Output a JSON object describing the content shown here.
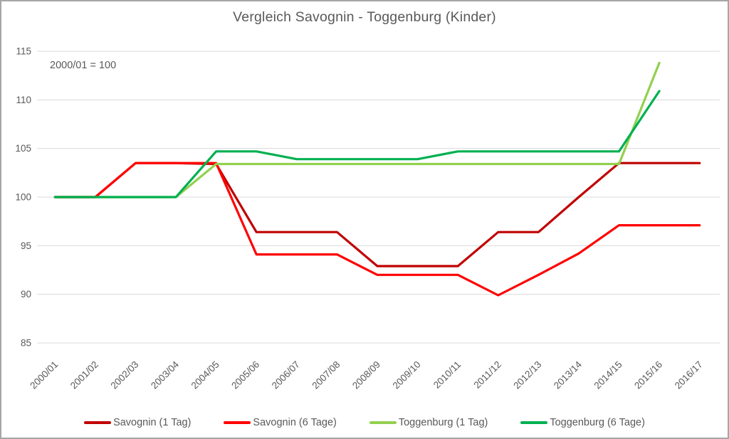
{
  "window": {
    "border_color": "#a6a6a6",
    "background": "#ffffff",
    "text_color": "#595959",
    "gridline_color": "#d9d9d9"
  },
  "chart_data": {
    "type": "line",
    "title": "Vergleich Savognin - Toggenburg (Kinder)",
    "annotation": "2000/01 = 100",
    "categories": [
      "2000/01",
      "2001/02",
      "2002/03",
      "2003/04",
      "2004/05",
      "2005/06",
      "2006/07",
      "2007/08",
      "2008/09",
      "2009/10",
      "2010/11",
      "2011/12",
      "2012/13",
      "2013/14",
      "2014/15",
      "2015/16",
      "2016/17"
    ],
    "series": [
      {
        "name": "Savognin (1 Tag)",
        "color": "#c00000",
        "values": [
          100,
          100,
          103.5,
          103.5,
          103.4,
          96.4,
          96.4,
          96.4,
          92.9,
          92.9,
          92.9,
          96.4,
          96.4,
          100,
          103.5,
          103.5,
          103.5
        ]
      },
      {
        "name": "Savognin (6 Tage)",
        "color": "#ff0000",
        "values": [
          100,
          100,
          103.5,
          103.5,
          103.5,
          94.1,
          94.1,
          94.1,
          92,
          92,
          92,
          89.9,
          92,
          94.2,
          97.1,
          97.1,
          97.1
        ]
      },
      {
        "name": "Toggenburg (1 Tag)",
        "color": "#92d050",
        "values": [
          100,
          100,
          100,
          100,
          103.4,
          103.4,
          103.4,
          103.4,
          103.4,
          103.4,
          103.4,
          103.4,
          103.4,
          103.4,
          103.4,
          113.8,
          null
        ]
      },
      {
        "name": "Toggenburg (6 Tage)",
        "color": "#00b050",
        "values": [
          100,
          100,
          100,
          100,
          104.7,
          104.7,
          103.9,
          103.9,
          103.9,
          103.9,
          104.7,
          104.7,
          104.7,
          104.7,
          104.7,
          110.9,
          null
        ]
      }
    ],
    "ylim": [
      85,
      115
    ],
    "yticks": [
      85,
      90,
      95,
      100,
      105,
      110,
      115
    ],
    "grid": "horizontal",
    "legend_position": "bottom"
  }
}
